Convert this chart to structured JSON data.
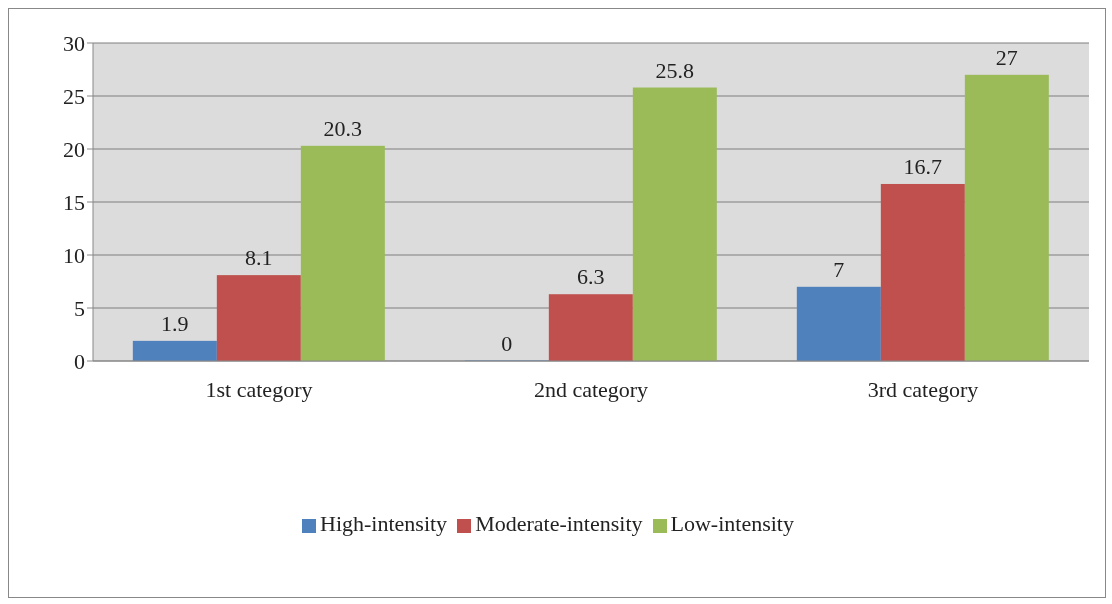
{
  "chart_data": {
    "type": "bar",
    "categories": [
      "1st category",
      "2nd category",
      "3rd category"
    ],
    "series": [
      {
        "name": "High-intensity",
        "color": "#4f81bd",
        "values": [
          1.9,
          0,
          7
        ]
      },
      {
        "name": "Moderate-intensity",
        "color": "#c0504d",
        "values": [
          8.1,
          6.3,
          16.7
        ]
      },
      {
        "name": "Low-intensity",
        "color": "#9bbb59",
        "values": [
          20.3,
          25.8,
          27
        ]
      }
    ],
    "ylim": [
      0,
      30
    ],
    "yticks": [
      0,
      5,
      10,
      15,
      20,
      25,
      30
    ],
    "grid": "y",
    "legend": "bottom",
    "data_labels": true
  }
}
